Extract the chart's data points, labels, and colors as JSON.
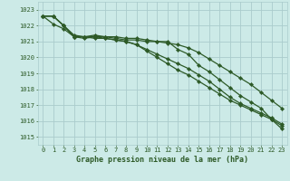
{
  "xlabel": "Graphe pression niveau de la mer (hPa)",
  "background_color": "#cceae7",
  "grid_color": "#aacccc",
  "line_color": "#2d5a27",
  "x_values": [
    0,
    1,
    2,
    3,
    4,
    5,
    6,
    7,
    8,
    9,
    10,
    11,
    12,
    13,
    14,
    15,
    16,
    17,
    18,
    19,
    20,
    21,
    22,
    23
  ],
  "ylim": [
    1014.5,
    1023.5
  ],
  "yticks": [
    1015,
    1016,
    1017,
    1018,
    1019,
    1020,
    1021,
    1022,
    1023
  ],
  "series": [
    [
      1022.6,
      1022.6,
      1022.0,
      1021.3,
      1021.3,
      1021.4,
      1021.3,
      1021.3,
      1021.2,
      1021.2,
      1021.1,
      1021.0,
      1020.9,
      1020.8,
      1020.6,
      1020.3,
      1019.9,
      1019.5,
      1019.1,
      1018.7,
      1018.3,
      1017.8,
      1017.3,
      1016.8
    ],
    [
      1022.6,
      1022.6,
      1022.0,
      1021.4,
      1021.3,
      1021.3,
      1021.3,
      1021.2,
      1021.1,
      1021.1,
      1021.0,
      1021.0,
      1021.0,
      1020.5,
      1020.2,
      1019.5,
      1019.1,
      1018.6,
      1018.1,
      1017.6,
      1017.2,
      1016.8,
      1016.1,
      1015.5
    ],
    [
      1022.6,
      1022.1,
      1021.8,
      1021.3,
      1021.3,
      1021.2,
      1021.2,
      1021.1,
      1021.0,
      1020.8,
      1020.4,
      1020.0,
      1019.6,
      1019.2,
      1018.9,
      1018.5,
      1018.1,
      1017.7,
      1017.3,
      1017.0,
      1016.7,
      1016.4,
      1016.1,
      1015.7
    ],
    [
      1022.6,
      1022.6,
      1022.0,
      1021.3,
      1021.2,
      1021.3,
      1021.2,
      1021.1,
      1021.0,
      1020.8,
      1020.5,
      1020.2,
      1019.9,
      1019.6,
      1019.3,
      1018.9,
      1018.5,
      1018.0,
      1017.5,
      1017.1,
      1016.8,
      1016.5,
      1016.2,
      1015.8
    ]
  ]
}
